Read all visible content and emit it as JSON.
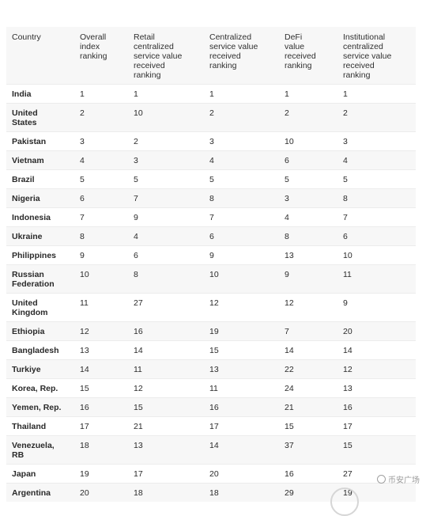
{
  "table": {
    "headers": [
      [
        "Country"
      ],
      [
        "Overall",
        "index",
        "ranking"
      ],
      [
        "Retail",
        "centralized",
        "service value",
        "received",
        "ranking"
      ],
      [
        "Centralized",
        "service value",
        "received",
        "ranking"
      ],
      [
        "DeFi",
        "value",
        "received",
        "ranking"
      ],
      [
        "Institutional",
        "centralized",
        "service value",
        "received",
        "ranking"
      ]
    ],
    "rows": [
      {
        "country": [
          "India"
        ],
        "values": [
          "1",
          "1",
          "1",
          "1",
          "1"
        ]
      },
      {
        "country": [
          "United",
          "States"
        ],
        "values": [
          "2",
          "10",
          "2",
          "2",
          "2"
        ]
      },
      {
        "country": [
          "Pakistan"
        ],
        "values": [
          "3",
          "2",
          "3",
          "10",
          "3"
        ]
      },
      {
        "country": [
          "Vietnam"
        ],
        "values": [
          "4",
          "3",
          "4",
          "6",
          "4"
        ]
      },
      {
        "country": [
          "Brazil"
        ],
        "values": [
          "5",
          "5",
          "5",
          "5",
          "5"
        ]
      },
      {
        "country": [
          "Nigeria"
        ],
        "values": [
          "6",
          "7",
          "8",
          "3",
          "8"
        ]
      },
      {
        "country": [
          "Indonesia"
        ],
        "values": [
          "7",
          "9",
          "7",
          "4",
          "7"
        ]
      },
      {
        "country": [
          "Ukraine"
        ],
        "values": [
          "8",
          "4",
          "6",
          "8",
          "6"
        ]
      },
      {
        "country": [
          "Philippines"
        ],
        "values": [
          "9",
          "6",
          "9",
          "13",
          "10"
        ]
      },
      {
        "country": [
          "Russian",
          "Federation"
        ],
        "values": [
          "10",
          "8",
          "10",
          "9",
          "11"
        ]
      },
      {
        "country": [
          "United",
          "Kingdom"
        ],
        "values": [
          "11",
          "27",
          "12",
          "12",
          "9"
        ]
      },
      {
        "country": [
          "Ethiopia"
        ],
        "values": [
          "12",
          "16",
          "19",
          "7",
          "20"
        ]
      },
      {
        "country": [
          "Bangladesh"
        ],
        "values": [
          "13",
          "14",
          "15",
          "14",
          "14"
        ]
      },
      {
        "country": [
          "Turkiye"
        ],
        "values": [
          "14",
          "11",
          "13",
          "22",
          "12"
        ]
      },
      {
        "country": [
          "Korea, Rep."
        ],
        "values": [
          "15",
          "12",
          "11",
          "24",
          "13"
        ]
      },
      {
        "country": [
          "Yemen, Rep."
        ],
        "values": [
          "16",
          "15",
          "16",
          "21",
          "16"
        ]
      },
      {
        "country": [
          "Thailand"
        ],
        "values": [
          "17",
          "21",
          "17",
          "15",
          "17"
        ]
      },
      {
        "country": [
          "Venezuela,",
          "RB"
        ],
        "values": [
          "18",
          "13",
          "14",
          "37",
          "15"
        ]
      },
      {
        "country": [
          "Japan"
        ],
        "values": [
          "19",
          "17",
          "20",
          "16",
          "27"
        ]
      },
      {
        "country": [
          "Argentina"
        ],
        "values": [
          "20",
          "18",
          "18",
          "29",
          "19"
        ]
      }
    ]
  },
  "watermark": {
    "icon": "circle-logo-icon",
    "text": "币安广场"
  },
  "colors": {
    "header_bg": "#f7f7f7",
    "alt_row_bg": "#f7f7f7",
    "row_border": "#ececec",
    "text": "#2b2b2b"
  }
}
